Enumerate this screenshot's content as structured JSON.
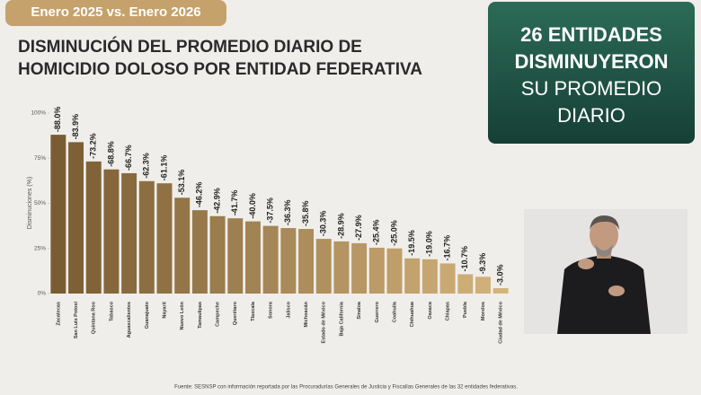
{
  "chart_data": {
    "type": "bar",
    "subtitle": "Enero 2025 vs. Enero 2026",
    "title": [
      "DISMINUCIÓN DEL PROMEDIO DIARIO DE",
      "HOMICIDIO DOLOSO POR ENTIDAD FEDERATIVA"
    ],
    "y_label": "Disminuciones (%)",
    "source": "Fuente: SESNSP con información reportada por las Procuradurías Generales de Justicia y Fiscalías Generales de las 32 entidades federativas.",
    "categories": [
      "Zacatecas",
      "San Luis Potosí",
      "Quintana Roo",
      "Tabasco",
      "Aguascalientes",
      "Guanajuato",
      "Nayarit",
      "Nuevo León",
      "Tamaulipas",
      "Campeche",
      "Querétaro",
      "Tlaxcala",
      "Sonora",
      "Jalisco",
      "Michoacán",
      "Estado de México",
      "Baja California",
      "Sinaloa",
      "Guerrero",
      "Coahuila",
      "Chihuahua",
      "Oaxaca",
      "Chiapas",
      "Puebla",
      "Morelos",
      "Ciudad de México"
    ],
    "values": [
      -88.0,
      -83.9,
      -73.2,
      -68.8,
      -66.7,
      -62.3,
      -61.1,
      -53.1,
      -46.2,
      -42.9,
      -41.7,
      -40.0,
      -37.5,
      -36.3,
      -35.8,
      -30.3,
      -28.9,
      -27.9,
      -25.4,
      -25.0,
      -19.5,
      -19.0,
      -16.7,
      -10.7,
      -9.3,
      -3.0
    ],
    "value_labels": [
      "-88.0%",
      "-83.9%",
      "-73.2%",
      "-68.8%",
      "-66.7%",
      "-62.3%",
      "-61.1%",
      "-53.1%",
      "-46.2%",
      "-42.9%",
      "-41.7%",
      "-40.0%",
      "-37.5%",
      "-36.3%",
      "-35.8%",
      "-30.3%",
      "-28.9%",
      "-27.9%",
      "-25.4%",
      "-25.0%",
      "-19.5%",
      "-19.0%",
      "-16.7%",
      "-10.7%",
      "-9.3%",
      "-3.0%"
    ],
    "color_range": [
      "#7a5c32",
      "#d4b47c"
    ],
    "ylim": [
      0,
      -100
    ],
    "yticks": [
      {
        "value": 0,
        "label": "0%"
      },
      {
        "value": -25,
        "label": "25%"
      },
      {
        "value": -50,
        "label": "50%"
      },
      {
        "value": -75,
        "label": "75%"
      },
      {
        "value": -100,
        "label": "100%"
      }
    ],
    "grid": false
  },
  "callout": {
    "lines": [
      "26 ENTIDADES",
      "DISMINUYERON",
      "SU PROMEDIO",
      "DIARIO"
    ]
  }
}
